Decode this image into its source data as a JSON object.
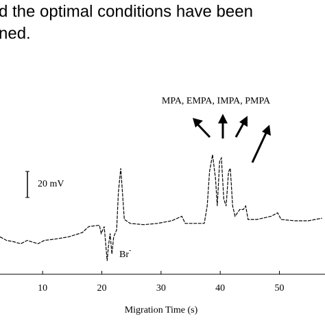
{
  "text_lines": [
    "d the optimal conditions have been",
    "ned."
  ],
  "chart_data": {
    "type": "line",
    "xlabel": "Migration Time (s)",
    "annotations": {
      "peaks": "MPA, EMPA, IMPA, PMPA",
      "ion": "Br",
      "ion_charge": "-"
    },
    "scale_bar": {
      "value": 20,
      "label": "20 mV"
    },
    "xlim": [
      2.8,
      57.7
    ],
    "xticks": [
      10,
      20,
      30,
      40,
      50
    ],
    "ylim": [
      -5,
      137
    ],
    "color": "#000000",
    "x": [
      2.8,
      3.9,
      5.1,
      6.3,
      7.4,
      9.2,
      10.3,
      12.1,
      14.4,
      16.7,
      17.8,
      19.6,
      19.9,
      20.4,
      20.9,
      21.1,
      21.4,
      21.7,
      22.0,
      22.5,
      22.8,
      23.2,
      23.4,
      23.8,
      24.8,
      27.1,
      29.4,
      31.8,
      33.5,
      34.1,
      35.8,
      37.3,
      37.8,
      38.2,
      38.7,
      39.2,
      39.5,
      39.9,
      40.2,
      40.6,
      41.0,
      41.4,
      41.7,
      42.1,
      42.5,
      43.3,
      43.9,
      44.3,
      44.7,
      46.2,
      48.6,
      49.7,
      50.3,
      52.6,
      54.9,
      57.2
    ],
    "values": [
      23.7,
      21,
      20,
      18.4,
      21,
      18.4,
      21,
      22,
      23.7,
      27,
      31.6,
      32.6,
      26.3,
      31.6,
      5.3,
      15.8,
      26.3,
      10.5,
      23.7,
      29,
      58,
      76.3,
      63,
      37,
      34,
      33,
      34,
      36,
      39.5,
      34,
      34,
      34,
      47.4,
      73.7,
      86.8,
      68.4,
      47.4,
      81.6,
      84.2,
      52.6,
      47.4,
      73.7,
      76.3,
      47.4,
      39.5,
      44.7,
      44.7,
      47.4,
      37,
      37,
      39.5,
      42.1,
      37,
      36,
      36,
      38
    ]
  }
}
